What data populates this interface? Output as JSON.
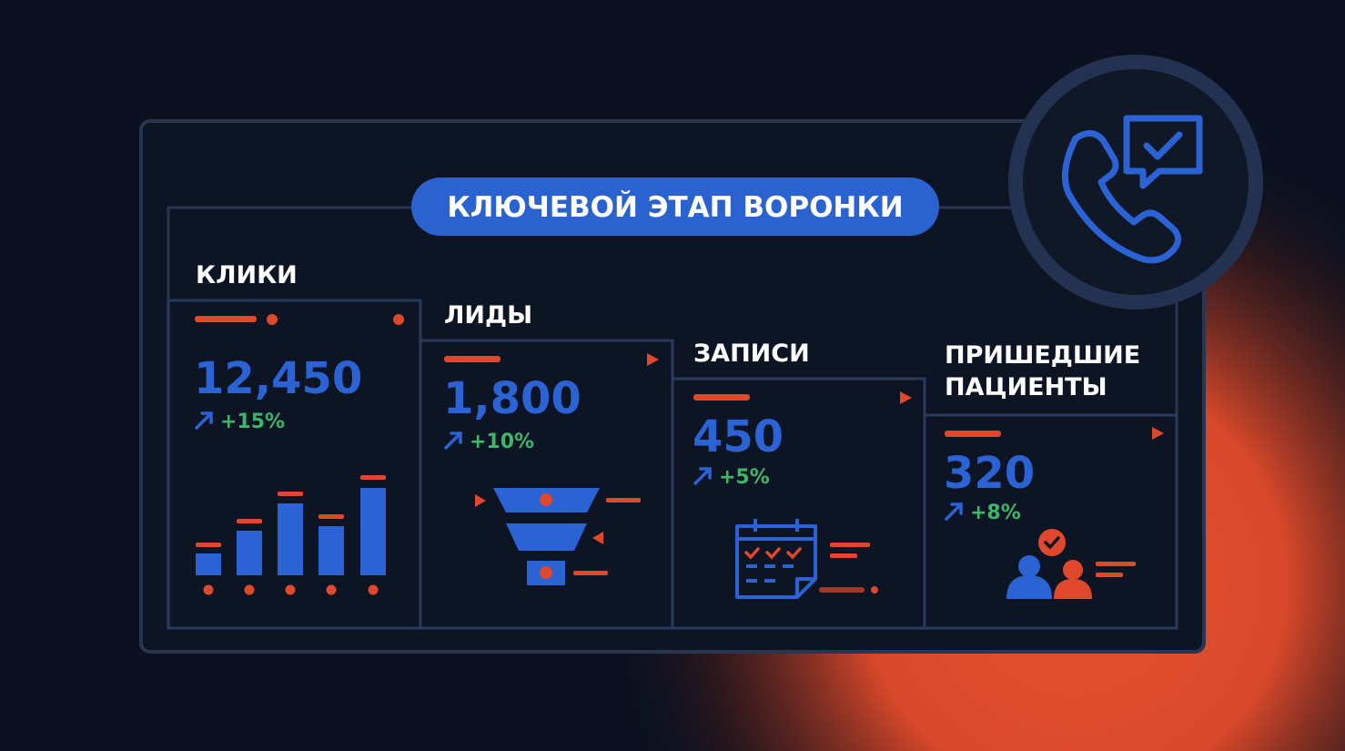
{
  "title": "КЛЮЧЕВОЙ ЭТАП ВОРОНКИ",
  "stages": [
    {
      "label": [
        "КЛИКИ"
      ],
      "value": "12,450",
      "change": "+15%"
    },
    {
      "label": [
        "ЛИДЫ"
      ],
      "value": "1,800",
      "change": "+10%"
    },
    {
      "label": [
        "ЗАПИСИ"
      ],
      "value": "450",
      "change": "+5%"
    },
    {
      "label": [
        "ПРИШЕДШИЕ",
        "ПАЦИЕНТЫ"
      ],
      "value": "320",
      "change": "+8%"
    }
  ]
}
